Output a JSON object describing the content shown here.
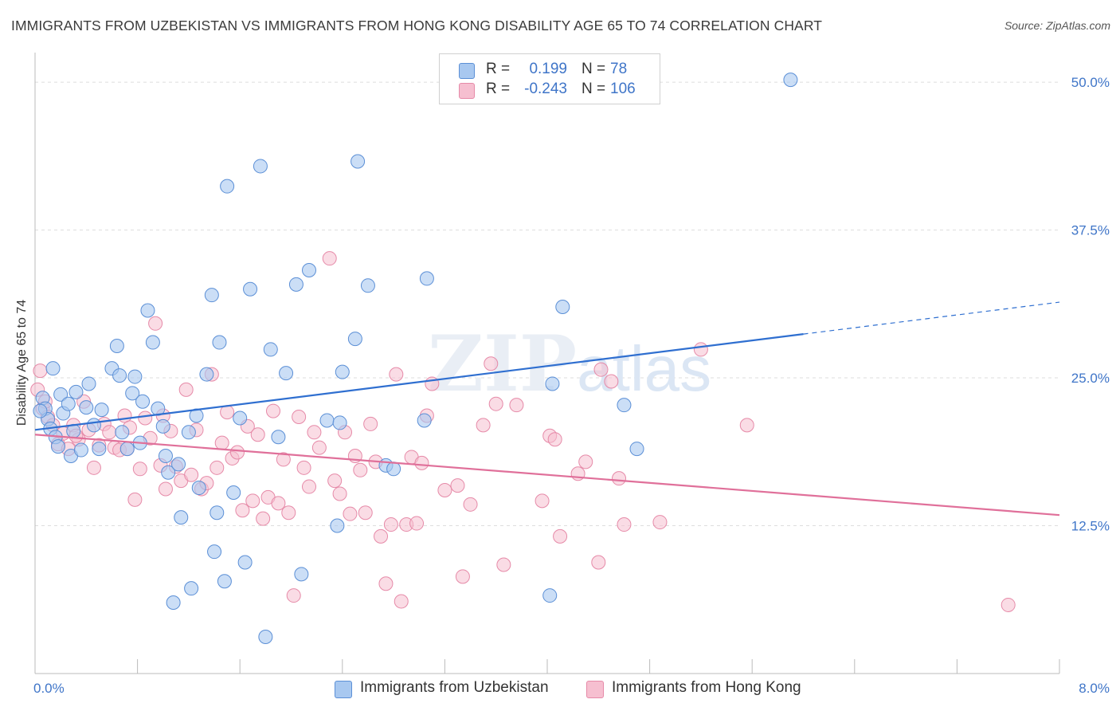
{
  "title": "IMMIGRANTS FROM UZBEKISTAN VS IMMIGRANTS FROM HONG KONG DISABILITY AGE 65 TO 74 CORRELATION CHART",
  "source": "Source: ZipAtlas.com",
  "watermark": "ZIPatlas",
  "legend": {
    "series1": {
      "r_label": "R =",
      "r_value": "0.199",
      "n_label": "N =",
      "n_value": "78"
    },
    "series2": {
      "r_label": "R =",
      "r_value": "-0.243",
      "n_label": "N =",
      "n_value": "106"
    }
  },
  "colors": {
    "blue_fill": "#a8c8f0",
    "blue_stroke": "#5b8fd6",
    "blue_line": "#2f6fd0",
    "pink_fill": "#f6bfd0",
    "pink_stroke": "#e68aa8",
    "pink_line": "#e0709a",
    "grid": "#dddddd",
    "axis_label": "#3f75c8"
  },
  "chart_data": {
    "type": "scatter",
    "title": "IMMIGRANTS FROM UZBEKISTAN VS IMMIGRANTS FROM HONG KONG DISABILITY AGE 65 TO 74 CORRELATION CHART",
    "xlabel": "",
    "ylabel": "Disability Age 65 to 74",
    "xlim": [
      0,
      8.0
    ],
    "ylim": [
      0,
      52.5
    ],
    "x_tick_labels": [
      "0.0%",
      "8.0%"
    ],
    "y_ticks": [
      12.5,
      25.0,
      37.5,
      50.0
    ],
    "y_tick_labels": [
      "12.5%",
      "25.0%",
      "37.5%",
      "50.0%"
    ],
    "grid": true,
    "legend_position": "top-center",
    "series": [
      {
        "name": "Immigrants from Uzbekistan",
        "r": 0.199,
        "n": 78,
        "trend": {
          "x0": 0.0,
          "y0": 20.6,
          "x1": 6.0,
          "y1": 28.7,
          "dashed_to_x": 8.0,
          "dashed_to_y": 31.4
        },
        "points": [
          [
            0.06,
            23.3
          ],
          [
            0.08,
            22.4
          ],
          [
            0.1,
            21.5
          ],
          [
            0.12,
            20.7
          ],
          [
            0.14,
            25.8
          ],
          [
            0.16,
            20.0
          ],
          [
            0.18,
            19.2
          ],
          [
            0.2,
            23.6
          ],
          [
            0.22,
            22.0
          ],
          [
            0.26,
            22.8
          ],
          [
            0.28,
            18.4
          ],
          [
            0.3,
            20.5
          ],
          [
            0.32,
            23.8
          ],
          [
            0.36,
            18.9
          ],
          [
            0.4,
            22.5
          ],
          [
            0.42,
            24.5
          ],
          [
            0.5,
            19.0
          ],
          [
            0.52,
            22.3
          ],
          [
            0.6,
            25.8
          ],
          [
            0.64,
            27.7
          ],
          [
            0.66,
            25.2
          ],
          [
            0.72,
            19.0
          ],
          [
            0.76,
            23.7
          ],
          [
            0.78,
            25.1
          ],
          [
            0.82,
            19.5
          ],
          [
            0.84,
            23.0
          ],
          [
            0.88,
            30.7
          ],
          [
            0.92,
            28.0
          ],
          [
            0.96,
            22.4
          ],
          [
            1.0,
            20.9
          ],
          [
            1.02,
            18.4
          ],
          [
            1.04,
            17.0
          ],
          [
            1.08,
            6.0
          ],
          [
            1.12,
            17.7
          ],
          [
            1.14,
            13.2
          ],
          [
            1.2,
            20.4
          ],
          [
            1.22,
            7.2
          ],
          [
            1.26,
            21.8
          ],
          [
            1.28,
            15.7
          ],
          [
            1.34,
            25.3
          ],
          [
            1.38,
            32.0
          ],
          [
            1.4,
            10.3
          ],
          [
            1.42,
            13.6
          ],
          [
            1.44,
            28.0
          ],
          [
            1.48,
            7.8
          ],
          [
            1.5,
            41.2
          ],
          [
            1.55,
            15.3
          ],
          [
            1.6,
            21.6
          ],
          [
            1.64,
            9.4
          ],
          [
            1.68,
            32.5
          ],
          [
            1.76,
            42.9
          ],
          [
            1.8,
            3.1
          ],
          [
            1.84,
            27.4
          ],
          [
            1.96,
            25.4
          ],
          [
            2.04,
            32.9
          ],
          [
            2.08,
            8.4
          ],
          [
            2.14,
            34.1
          ],
          [
            2.28,
            21.4
          ],
          [
            2.36,
            12.5
          ],
          [
            2.38,
            21.2
          ],
          [
            2.4,
            25.5
          ],
          [
            2.5,
            28.3
          ],
          [
            2.52,
            43.3
          ],
          [
            2.6,
            32.8
          ],
          [
            2.74,
            17.6
          ],
          [
            2.8,
            17.3
          ],
          [
            3.04,
            21.4
          ],
          [
            3.06,
            33.4
          ],
          [
            4.02,
            6.6
          ],
          [
            4.04,
            24.5
          ],
          [
            4.12,
            31.0
          ],
          [
            4.6,
            22.7
          ],
          [
            4.7,
            19.0
          ],
          [
            5.9,
            50.2
          ],
          [
            0.04,
            22.2
          ],
          [
            0.46,
            21.0
          ],
          [
            0.68,
            20.4
          ],
          [
            1.9,
            20.0
          ]
        ]
      },
      {
        "name": "Immigrants from Hong Kong",
        "r": -0.243,
        "n": 106,
        "trend": {
          "x0": 0.0,
          "y0": 20.2,
          "x1": 8.0,
          "y1": 13.4
        },
        "points": [
          [
            0.02,
            24.0
          ],
          [
            0.06,
            22.4
          ],
          [
            0.1,
            21.7
          ],
          [
            0.14,
            21.0
          ],
          [
            0.18,
            19.4
          ],
          [
            0.22,
            20.3
          ],
          [
            0.26,
            19.0
          ],
          [
            0.3,
            21.0
          ],
          [
            0.34,
            19.8
          ],
          [
            0.38,
            23.0
          ],
          [
            0.42,
            20.6
          ],
          [
            0.46,
            17.4
          ],
          [
            0.5,
            19.3
          ],
          [
            0.54,
            21.1
          ],
          [
            0.58,
            20.4
          ],
          [
            0.62,
            19.1
          ],
          [
            0.66,
            18.9
          ],
          [
            0.7,
            21.8
          ],
          [
            0.74,
            20.8
          ],
          [
            0.78,
            14.7
          ],
          [
            0.82,
            17.3
          ],
          [
            0.86,
            21.6
          ],
          [
            0.9,
            19.9
          ],
          [
            0.94,
            29.6
          ],
          [
            0.98,
            17.6
          ],
          [
            1.02,
            15.6
          ],
          [
            1.06,
            20.5
          ],
          [
            1.1,
            17.5
          ],
          [
            1.14,
            16.3
          ],
          [
            1.18,
            24.0
          ],
          [
            1.22,
            16.8
          ],
          [
            1.26,
            20.6
          ],
          [
            1.3,
            15.6
          ],
          [
            1.34,
            16.1
          ],
          [
            1.38,
            25.3
          ],
          [
            1.42,
            17.4
          ],
          [
            1.46,
            19.5
          ],
          [
            1.5,
            22.1
          ],
          [
            1.54,
            18.2
          ],
          [
            1.58,
            18.7
          ],
          [
            1.62,
            13.8
          ],
          [
            1.66,
            20.9
          ],
          [
            1.7,
            14.6
          ],
          [
            1.74,
            20.2
          ],
          [
            1.78,
            13.1
          ],
          [
            1.82,
            14.9
          ],
          [
            1.86,
            22.2
          ],
          [
            1.9,
            14.4
          ],
          [
            1.94,
            18.1
          ],
          [
            1.98,
            13.6
          ],
          [
            2.02,
            6.6
          ],
          [
            2.06,
            21.7
          ],
          [
            2.1,
            17.4
          ],
          [
            2.14,
            15.8
          ],
          [
            2.18,
            20.4
          ],
          [
            2.22,
            19.1
          ],
          [
            2.34,
            16.3
          ],
          [
            2.38,
            15.2
          ],
          [
            2.42,
            20.4
          ],
          [
            2.46,
            13.5
          ],
          [
            2.5,
            18.4
          ],
          [
            2.54,
            17.2
          ],
          [
            2.58,
            13.6
          ],
          [
            2.62,
            21.1
          ],
          [
            2.66,
            17.9
          ],
          [
            2.7,
            11.6
          ],
          [
            2.74,
            7.6
          ],
          [
            2.78,
            12.6
          ],
          [
            2.82,
            25.3
          ],
          [
            2.86,
            6.1
          ],
          [
            2.9,
            12.6
          ],
          [
            2.94,
            18.3
          ],
          [
            2.98,
            12.7
          ],
          [
            3.02,
            17.8
          ],
          [
            3.06,
            21.8
          ],
          [
            3.1,
            24.5
          ],
          [
            3.2,
            15.5
          ],
          [
            3.3,
            15.9
          ],
          [
            3.34,
            8.2
          ],
          [
            3.4,
            14.3
          ],
          [
            3.5,
            21.0
          ],
          [
            3.56,
            26.2
          ],
          [
            3.6,
            22.8
          ],
          [
            3.66,
            9.2
          ],
          [
            3.76,
            22.7
          ],
          [
            3.96,
            14.6
          ],
          [
            4.02,
            20.1
          ],
          [
            4.06,
            19.8
          ],
          [
            4.24,
            16.9
          ],
          [
            4.3,
            17.9
          ],
          [
            4.4,
            9.4
          ],
          [
            4.42,
            25.7
          ],
          [
            4.5,
            24.7
          ],
          [
            4.56,
            16.5
          ],
          [
            4.6,
            12.6
          ],
          [
            4.88,
            12.8
          ],
          [
            5.2,
            27.4
          ],
          [
            5.56,
            21.0
          ],
          [
            7.6,
            5.8
          ],
          [
            0.04,
            25.6
          ],
          [
            0.08,
            23.0
          ],
          [
            0.32,
            20.1
          ],
          [
            0.72,
            19.0
          ],
          [
            1.0,
            21.8
          ],
          [
            2.3,
            35.1
          ],
          [
            4.1,
            11.6
          ]
        ]
      }
    ]
  },
  "bottom_legend": {
    "series1_label": "Immigrants from Uzbekistan",
    "series2_label": "Immigrants from Hong Kong"
  }
}
